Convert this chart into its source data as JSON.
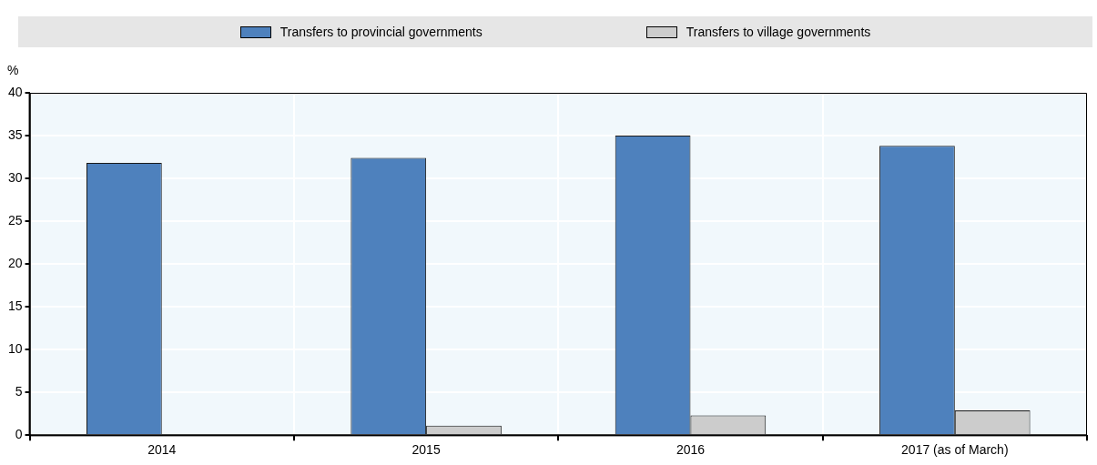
{
  "chart_data": {
    "type": "bar",
    "ylabel": "%",
    "categories": [
      "2014",
      "2015",
      "2016",
      "2017 (as of March)"
    ],
    "series": [
      {
        "name": "Transfers to provincial governments",
        "color": "#4e81bd",
        "values": [
          31.8,
          32.4,
          35.0,
          33.8
        ]
      },
      {
        "name": "Transfers to village governments",
        "color": "#cccccc",
        "values": [
          0,
          1.1,
          2.3,
          2.9
        ]
      }
    ],
    "ylim": [
      0,
      40
    ],
    "yticks": [
      0,
      5,
      10,
      15,
      20,
      25,
      30,
      35,
      40
    ],
    "grid": true,
    "legend": "top"
  }
}
